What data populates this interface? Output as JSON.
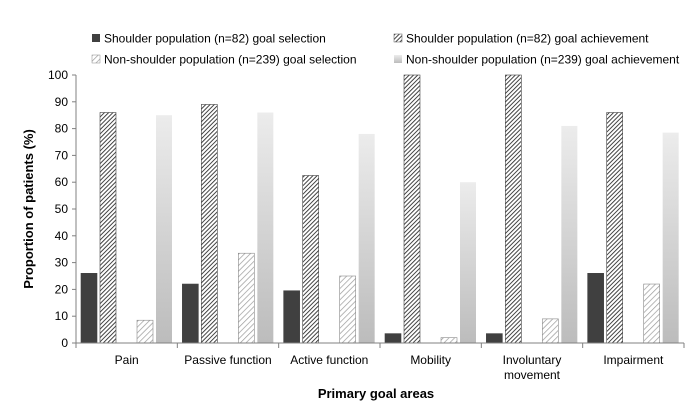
{
  "chart_data": {
    "type": "bar",
    "title": "",
    "xlabel": "Primary goal areas",
    "ylabel": "Proportion of patients (%)",
    "ylim": [
      0,
      100
    ],
    "yticks": [
      0,
      10,
      20,
      30,
      40,
      50,
      60,
      70,
      80,
      90,
      100
    ],
    "grid": false,
    "legend_position": "top",
    "categories": [
      [
        "Pain"
      ],
      [
        "Passive function"
      ],
      [
        "Active function"
      ],
      [
        "Mobility"
      ],
      [
        "Involuntary",
        "movement"
      ],
      [
        "Impairment"
      ]
    ],
    "series": [
      {
        "name": "Shoulder population (n=82) goal selection",
        "style": "solid-dark",
        "color": "#404040",
        "values": [
          26,
          22,
          19.5,
          3.5,
          3.5,
          26
        ]
      },
      {
        "name": "Shoulder population (n=82) goal achievement",
        "style": "dense-hatch",
        "color": "#3a3a3a",
        "values": [
          86,
          89,
          62.5,
          100,
          100,
          86
        ]
      },
      {
        "name": "Non-shoulder population (n=239) goal selection",
        "style": "light-hatch",
        "color": "#9a9a9a",
        "values": [
          8.5,
          33.5,
          25,
          2,
          9,
          22
        ]
      },
      {
        "name": "Non-shoulder population (n=239) goal achievement",
        "style": "gradient-light",
        "color": "#d0d0d0",
        "values": [
          85,
          86,
          78,
          60,
          81,
          78.5
        ]
      }
    ]
  }
}
